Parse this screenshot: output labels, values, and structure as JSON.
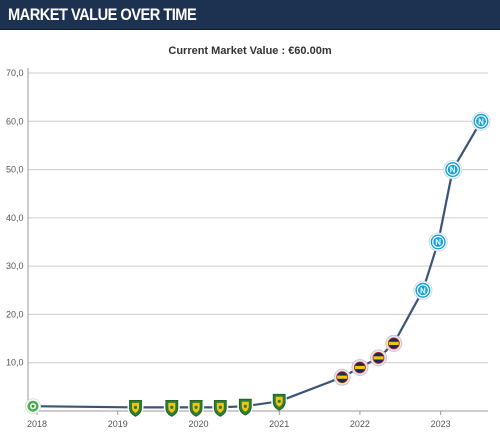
{
  "header": {
    "title": "MARKET VALUE OVER TIME"
  },
  "chart_data": {
    "type": "line",
    "subtitle": "Current Market Value : €60.00m",
    "y_ticks": [
      "70,0",
      "60,0",
      "50,0",
      "40,0",
      "30,0",
      "20,0",
      "10,0"
    ],
    "y_tick_values": [
      70,
      60,
      50,
      40,
      30,
      20,
      10
    ],
    "x_ticks": [
      "2018",
      "2019",
      "2020",
      "2021",
      "2022",
      "2023"
    ],
    "x_tick_values": [
      2018,
      2019,
      2020,
      2021,
      2022,
      2023
    ],
    "ylim": [
      0,
      70
    ],
    "xlim": [
      2017.95,
      2023.55
    ],
    "grid": "horizontal",
    "series": [
      {
        "values": [
          {
            "x": 2017.95,
            "y": 1.0,
            "club": "green-white"
          },
          {
            "x": 2019.22,
            "y": 0.75,
            "club": "green-yellow"
          },
          {
            "x": 2019.67,
            "y": 0.75,
            "club": "green-yellow"
          },
          {
            "x": 2019.97,
            "y": 0.75,
            "club": "green-yellow"
          },
          {
            "x": 2020.27,
            "y": 0.75,
            "club": "green-yellow"
          },
          {
            "x": 2020.58,
            "y": 1.0,
            "club": "green-yellow"
          },
          {
            "x": 2021.0,
            "y": 2.0,
            "club": "green-yellow"
          },
          {
            "x": 2021.78,
            "y": 7.0,
            "club": "yellow-navy"
          },
          {
            "x": 2022.0,
            "y": 9.0,
            "club": "yellow-navy"
          },
          {
            "x": 2022.23,
            "y": 11.0,
            "club": "yellow-navy"
          },
          {
            "x": 2022.42,
            "y": 14.0,
            "club": "yellow-navy"
          },
          {
            "x": 2022.78,
            "y": 25.0,
            "club": "napoli"
          },
          {
            "x": 2022.97,
            "y": 35.0,
            "club": "napoli"
          },
          {
            "x": 2023.15,
            "y": 50.0,
            "club": "napoli"
          },
          {
            "x": 2023.5,
            "y": 60.0,
            "club": "napoli"
          }
        ]
      }
    ]
  },
  "colors": {
    "header_bg": "#1d3150",
    "line": "#3b5475",
    "grid": "#cccccc",
    "napoli": "#12a0d7",
    "green": "#2e7d32",
    "yellow": "#f2c40f",
    "navy": "#1b2a5e"
  }
}
